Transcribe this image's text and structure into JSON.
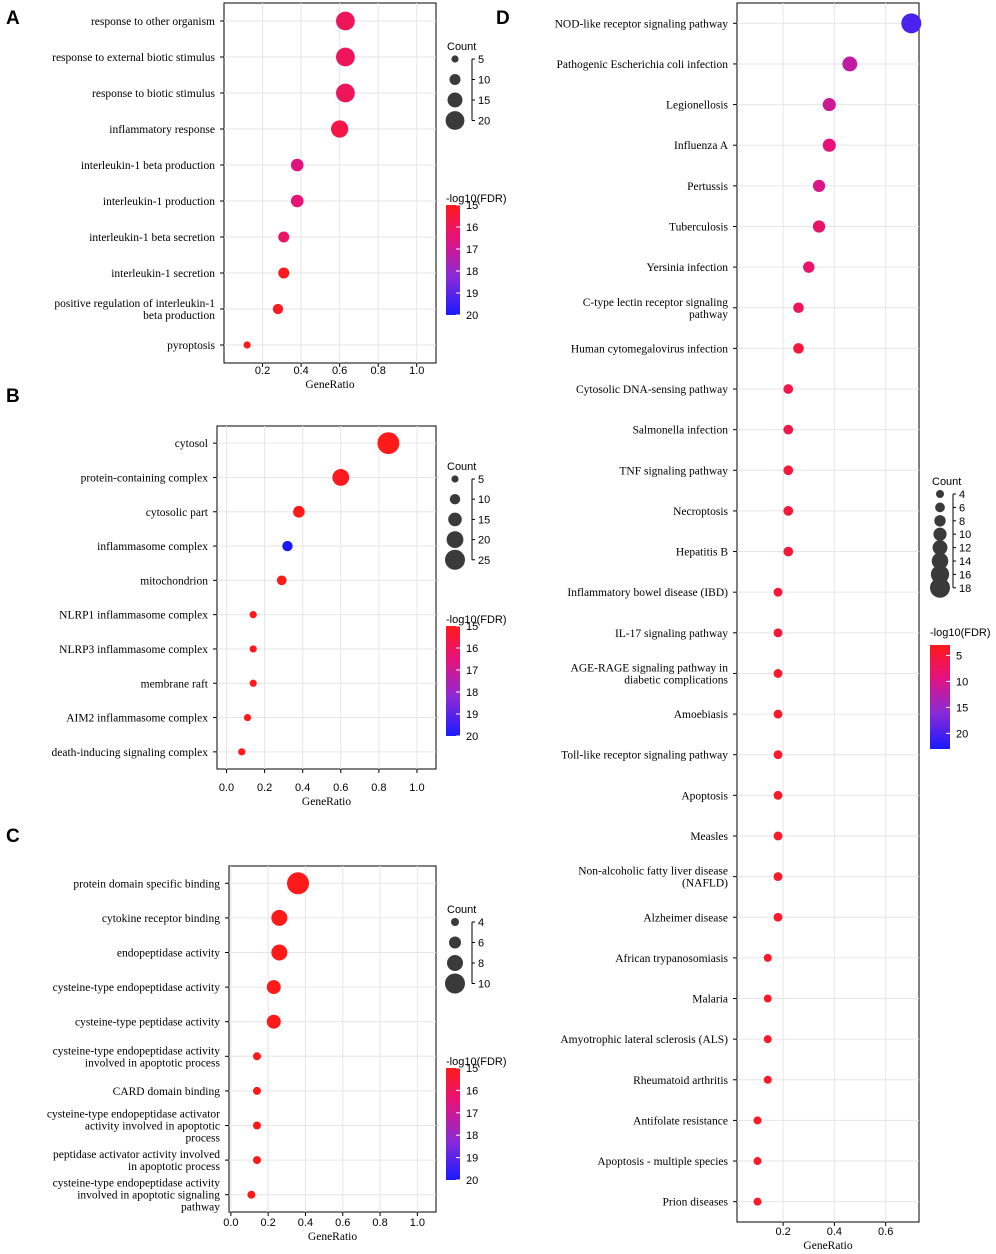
{
  "colors": {
    "high": "#ff1a1a",
    "low": "#1a1aff",
    "grid": "#e6e6e6",
    "axis": "#000000",
    "size_legend": "#3a3a3a"
  },
  "chart_data": [
    {
      "panel": "A",
      "type": "scatter",
      "xlabel": "GeneRatio",
      "xlim": [
        0,
        1.1
      ],
      "xticks": [
        0.2,
        0.4,
        0.6,
        0.8,
        1.0
      ],
      "xtick_labels": [
        "0.2",
        "0.4",
        "0.6",
        "0.8",
        "1.0"
      ],
      "categories": [
        [
          "response to other organism"
        ],
        [
          "response to external biotic stimulus"
        ],
        [
          "response to biotic stimulus"
        ],
        [
          "inflammatory response"
        ],
        [
          "interleukin-1 beta production"
        ],
        [
          "interleukin-1 production"
        ],
        [
          "interleukin-1 beta secretion"
        ],
        [
          "interleukin-1 secretion"
        ],
        [
          "positive regulation of interleukin-1",
          "beta production"
        ],
        [
          "pyroptosis"
        ]
      ],
      "x": [
        0.63,
        0.63,
        0.63,
        0.6,
        0.38,
        0.38,
        0.31,
        0.31,
        0.28,
        0.12
      ],
      "count": [
        20,
        20,
        20,
        18,
        12,
        12,
        10,
        10,
        9,
        4
      ],
      "neglog10_fdr": [
        16,
        16,
        16,
        15.7,
        16.6,
        16.4,
        16.2,
        15.1,
        15.1,
        15
      ],
      "size_legend": {
        "title": "Count",
        "values": [
          5,
          10,
          15,
          20
        ],
        "labels": [
          "5",
          "10",
          "15",
          "20"
        ]
      },
      "color_legend": {
        "title": "-log10(FDR)",
        "range": [
          15,
          20
        ],
        "reverse": false,
        "ticks": [
          15,
          16,
          17,
          18,
          19,
          20
        ],
        "tick_labels": [
          "15",
          "16",
          "17",
          "18",
          "19",
          "20"
        ]
      }
    },
    {
      "panel": "B",
      "type": "scatter",
      "xlabel": "GeneRatio",
      "xlim": [
        -0.05,
        1.1
      ],
      "xticks": [
        0,
        0.2,
        0.4,
        0.6,
        0.8,
        1.0
      ],
      "xtick_labels": [
        "0.0",
        "0.2",
        "0.4",
        "0.6",
        "0.8",
        "1.0"
      ],
      "categories": [
        [
          "cytosol"
        ],
        [
          "protein-containing complex"
        ],
        [
          "cytosolic part"
        ],
        [
          "inflammasome complex"
        ],
        [
          "mitochondrion"
        ],
        [
          "NLRP1 inflammasome complex"
        ],
        [
          "NLRP3 inflammasome complex"
        ],
        [
          "membrane raft"
        ],
        [
          "AIM2 inflammasome complex"
        ],
        [
          "death-inducing signaling complex"
        ]
      ],
      "x": [
        0.85,
        0.6,
        0.38,
        0.32,
        0.29,
        0.14,
        0.14,
        0.14,
        0.11,
        0.08
      ],
      "count": [
        28,
        20,
        12,
        10,
        9,
        5,
        5,
        5,
        4,
        3
      ],
      "neglog10_fdr": [
        15,
        15.1,
        15,
        20,
        15,
        15,
        15.1,
        15,
        15,
        15
      ],
      "size_legend": {
        "title": "Count",
        "values": [
          5,
          10,
          15,
          20,
          25
        ],
        "labels": [
          "5",
          "10",
          "15",
          "20",
          "25"
        ]
      },
      "color_legend": {
        "title": "-log10(FDR)",
        "range": [
          15,
          20
        ],
        "reverse": false,
        "ticks": [
          15,
          16,
          17,
          18,
          19,
          20
        ],
        "tick_labels": [
          "15",
          "16",
          "17",
          "18",
          "19",
          "20"
        ]
      }
    },
    {
      "panel": "C",
      "type": "scatter",
      "xlabel": "GeneRatio",
      "xlim": [
        -0.01,
        1.1
      ],
      "xticks": [
        0,
        0.2,
        0.4,
        0.6,
        0.8,
        1.0
      ],
      "xtick_labels": [
        "0.0",
        "0.2",
        "0.4",
        "0.6",
        "0.8",
        "1.0"
      ],
      "categories": [
        [
          "protein domain specific binding"
        ],
        [
          "cytokine receptor binding"
        ],
        [
          "endopeptidase activity"
        ],
        [
          "cysteine-type endopeptidase activity"
        ],
        [
          "cysteine-type peptidase activity"
        ],
        [
          "cysteine-type endopeptidase activity",
          "involved in apoptotic process"
        ],
        [
          "CARD domain binding"
        ],
        [
          "cysteine-type endopeptidase activator",
          "activity involved in apoptotic",
          "process"
        ],
        [
          "peptidase activator activity involved",
          "in apoptotic process"
        ],
        [
          "cysteine-type endopeptidase activity",
          "involved in apoptotic signaling",
          "pathway"
        ]
      ],
      "x": [
        0.36,
        0.26,
        0.26,
        0.23,
        0.23,
        0.14,
        0.14,
        0.14,
        0.14,
        0.11
      ],
      "count": [
        11,
        8,
        8,
        7,
        7,
        4,
        4,
        4,
        4,
        3
      ],
      "neglog10_fdr": [
        15,
        15,
        15,
        15,
        15,
        15,
        15,
        15,
        15,
        15
      ],
      "size_legend": {
        "title": "Count",
        "values": [
          4,
          6,
          8,
          10
        ],
        "labels": [
          "4",
          "6",
          "8",
          "10"
        ]
      },
      "color_legend": {
        "title": "-log10(FDR)",
        "range": [
          15,
          20
        ],
        "reverse": false,
        "ticks": [
          15,
          16,
          17,
          18,
          19,
          20
        ],
        "tick_labels": [
          "15",
          "16",
          "17",
          "18",
          "19",
          "20"
        ]
      }
    },
    {
      "panel": "D",
      "type": "scatter",
      "xlabel": "GeneRatio",
      "xlim": [
        0.02,
        0.73
      ],
      "xticks": [
        0.2,
        0.4,
        0.6
      ],
      "xtick_labels": [
        "0.2",
        "0.4",
        "0.6"
      ],
      "categories": [
        [
          "NOD-like receptor signaling pathway"
        ],
        [
          "Pathogenic Escherichia coli infection"
        ],
        [
          "Legionellosis"
        ],
        [
          "Influenza A"
        ],
        [
          "Pertussis"
        ],
        [
          "Tuberculosis"
        ],
        [
          "Yersinia infection"
        ],
        [
          "C-type lectin receptor signaling",
          "pathway"
        ],
        [
          "Human cytomegalovirus infection"
        ],
        [
          "Cytosolic DNA-sensing pathway"
        ],
        [
          "Salmonella infection"
        ],
        [
          "TNF signaling pathway"
        ],
        [
          "Necroptosis"
        ],
        [
          "Hepatitis B"
        ],
        [
          "Inflammatory bowel disease (IBD)"
        ],
        [
          "IL-17 signaling pathway"
        ],
        [
          "AGE-RAGE signaling pathway in",
          "diabetic complications"
        ],
        [
          "Amoebiasis"
        ],
        [
          "Toll-like receptor signaling pathway"
        ],
        [
          "Apoptosis"
        ],
        [
          "Measles"
        ],
        [
          "Non-alcoholic fatty liver disease",
          "(NAFLD)"
        ],
        [
          "Alzheimer disease"
        ],
        [
          "African trypanosomiasis"
        ],
        [
          "Malaria"
        ],
        [
          "Amyotrophic lateral sclerosis (ALS)"
        ],
        [
          "Rheumatoid arthritis"
        ],
        [
          "Antifolate resistance"
        ],
        [
          "Apoptosis - multiple species"
        ],
        [
          "Prion diseases"
        ]
      ],
      "x": [
        0.7,
        0.46,
        0.38,
        0.38,
        0.34,
        0.34,
        0.3,
        0.26,
        0.26,
        0.22,
        0.22,
        0.22,
        0.22,
        0.22,
        0.18,
        0.18,
        0.18,
        0.18,
        0.18,
        0.18,
        0.18,
        0.18,
        0.18,
        0.14,
        0.14,
        0.14,
        0.14,
        0.1,
        0.1,
        0.1
      ],
      "count": [
        18,
        12,
        10,
        10,
        9,
        9,
        8,
        7,
        7,
        6,
        6,
        6,
        6,
        6,
        5,
        5,
        5,
        5,
        5,
        5,
        5,
        5,
        5,
        4,
        4,
        4,
        4,
        3,
        3,
        3
      ],
      "neglog10_fdr": [
        20,
        12,
        11,
        9,
        10,
        8,
        8,
        7,
        5,
        6,
        6,
        5,
        5,
        5,
        5,
        5,
        4,
        4,
        4,
        4,
        4,
        4,
        4,
        4,
        4,
        4,
        4,
        4,
        4,
        4
      ],
      "size_legend": {
        "title": "Count",
        "values": [
          4,
          6,
          8,
          10,
          12,
          14,
          16,
          18
        ],
        "labels": [
          "4",
          "6",
          "8",
          "10",
          "12",
          "14",
          "16",
          "18"
        ]
      },
      "color_legend": {
        "title": "-log10(FDR)",
        "range": [
          3,
          23
        ],
        "reverse": true,
        "ticks": [
          5,
          10,
          15,
          20
        ],
        "tick_labels": [
          "5",
          "10",
          "15",
          "20"
        ]
      }
    }
  ]
}
